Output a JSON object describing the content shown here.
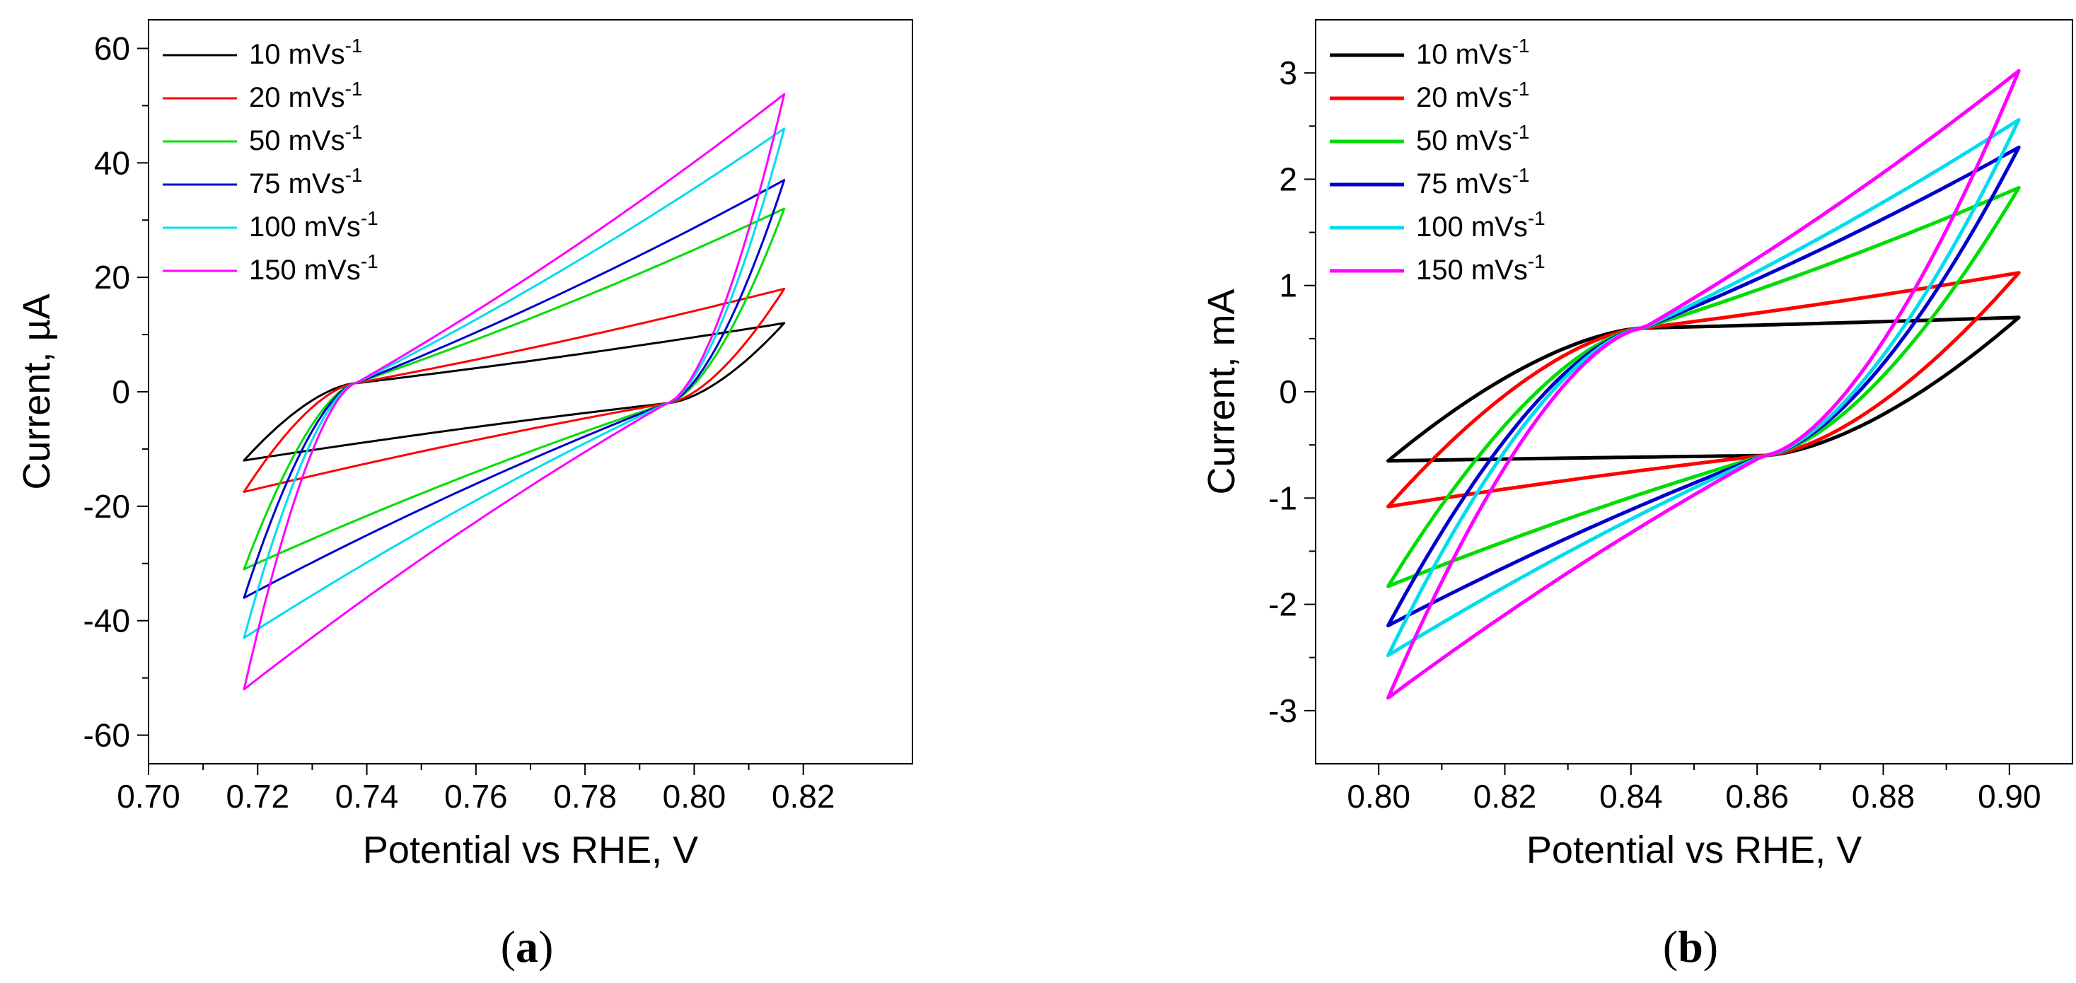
{
  "chart_data": [
    {
      "type": "line",
      "panel_label": "a",
      "xlabel": "Potential vs RHE, V",
      "ylabel": "Current, µA",
      "xlim": [
        0.7,
        0.84
      ],
      "ylim": [
        -65,
        65
      ],
      "xticks": [
        0.7,
        0.72,
        0.74,
        0.76,
        0.78,
        0.8,
        0.82
      ],
      "xtick_labels": [
        "0.70",
        "0.72",
        "0.74",
        "0.76",
        "0.78",
        "0.80",
        "0.82"
      ],
      "yticks": [
        -60,
        -40,
        -20,
        0,
        20,
        40,
        60
      ],
      "ytick_labels": [
        "-60",
        "-40",
        "-20",
        "0",
        "20",
        "40",
        "60"
      ],
      "legend_position": "top-left",
      "grid": false,
      "cv": {
        "e_min": 0.7175,
        "e_max": 0.8165,
        "cross_low": [
          0.738,
          1.5
        ],
        "cross_high": [
          0.795,
          -2.0
        ]
      },
      "series": [
        {
          "name": "10 mVs-1",
          "legend": {
            "label": "10 mVs",
            "sup": "-1"
          },
          "color": "#000000",
          "i_top_right": 12,
          "i_bottom_left": -12,
          "i_anodic_start": -11,
          "i_cathodic_start": 10
        },
        {
          "name": "20 mVs-1",
          "legend": {
            "label": "20 mVs",
            "sup": "-1"
          },
          "color": "#ff0000",
          "i_top_right": 18,
          "i_bottom_left": -17.5,
          "i_anodic_start": -16,
          "i_cathodic_start": 15
        },
        {
          "name": "50 mVs-1",
          "legend": {
            "label": "50 mVs",
            "sup": "-1"
          },
          "color": "#00dd00",
          "i_top_right": 32,
          "i_bottom_left": -31,
          "i_anodic_start": -29,
          "i_cathodic_start": 28
        },
        {
          "name": "75 mVs-1",
          "legend": {
            "label": "75 mVs",
            "sup": "-1"
          },
          "color": "#0000cc",
          "i_top_right": 37,
          "i_bottom_left": -36,
          "i_anodic_start": -35,
          "i_cathodic_start": 35
        },
        {
          "name": "100 mVs-1",
          "legend": {
            "label": "100 mVs",
            "sup": "-1"
          },
          "color": "#00ddee",
          "i_top_right": 46,
          "i_bottom_left": -43,
          "i_anodic_start": -42,
          "i_cathodic_start": 42
        },
        {
          "name": "150 mVs-1",
          "legend": {
            "label": "150 mVs",
            "sup": "-1"
          },
          "color": "#ff00ff",
          "i_top_right": 52,
          "i_bottom_left": -52,
          "i_anodic_start": -52,
          "i_cathodic_start": 52
        }
      ]
    },
    {
      "type": "line",
      "panel_label": "b",
      "xlabel": "Potential vs RHE, V",
      "ylabel": "Current, mA",
      "xlim": [
        0.79,
        0.91
      ],
      "ylim": [
        -3.5,
        3.5
      ],
      "xticks": [
        0.8,
        0.82,
        0.84,
        0.86,
        0.88,
        0.9
      ],
      "xtick_labels": [
        "0.80",
        "0.82",
        "0.84",
        "0.86",
        "0.88",
        "0.90"
      ],
      "yticks": [
        -3,
        -2,
        -1,
        0,
        1,
        2,
        3
      ],
      "ytick_labels": [
        "-3",
        "-2",
        "-1",
        "0",
        "1",
        "2",
        "3"
      ],
      "legend_position": "top-left",
      "grid": false,
      "cv": {
        "e_min": 0.8015,
        "e_max": 0.9015,
        "cross_low": [
          0.842,
          0.6
        ],
        "cross_high": [
          0.861,
          -0.6
        ]
      },
      "series": [
        {
          "name": "10 mVs-1",
          "legend": {
            "label": "10 mVs",
            "sup": "-1"
          },
          "color": "#000000",
          "i_top_right": 0.7,
          "i_bottom_left": -0.65,
          "i_anodic_start": -0.64,
          "i_cathodic_start": 0.62
        },
        {
          "name": "20 mVs-1",
          "legend": {
            "label": "20 mVs",
            "sup": "-1"
          },
          "color": "#ff0000",
          "i_top_right": 1.12,
          "i_bottom_left": -1.08,
          "i_anodic_start": -1.07,
          "i_cathodic_start": 1.05
        },
        {
          "name": "50 mVs-1",
          "legend": {
            "label": "50 mVs",
            "sup": "-1"
          },
          "color": "#00dd00",
          "i_top_right": 1.92,
          "i_bottom_left": -1.83,
          "i_anodic_start": -1.8,
          "i_cathodic_start": 1.8
        },
        {
          "name": "75 mVs-1",
          "legend": {
            "label": "75 mVs",
            "sup": "-1"
          },
          "color": "#0000cc",
          "i_top_right": 2.3,
          "i_bottom_left": -2.2,
          "i_anodic_start": -2.15,
          "i_cathodic_start": 2.2
        },
        {
          "name": "100 mVs-1",
          "legend": {
            "label": "100 mVs",
            "sup": "-1"
          },
          "color": "#00ddee",
          "i_top_right": 2.56,
          "i_bottom_left": -2.48,
          "i_anodic_start": -2.45,
          "i_cathodic_start": 2.45
        },
        {
          "name": "150 mVs-1",
          "legend": {
            "label": "150 mVs",
            "sup": "-1"
          },
          "color": "#ff00ff",
          "i_top_right": 3.02,
          "i_bottom_left": -2.88,
          "i_anodic_start": -2.85,
          "i_cathodic_start": 2.9
        }
      ]
    }
  ]
}
